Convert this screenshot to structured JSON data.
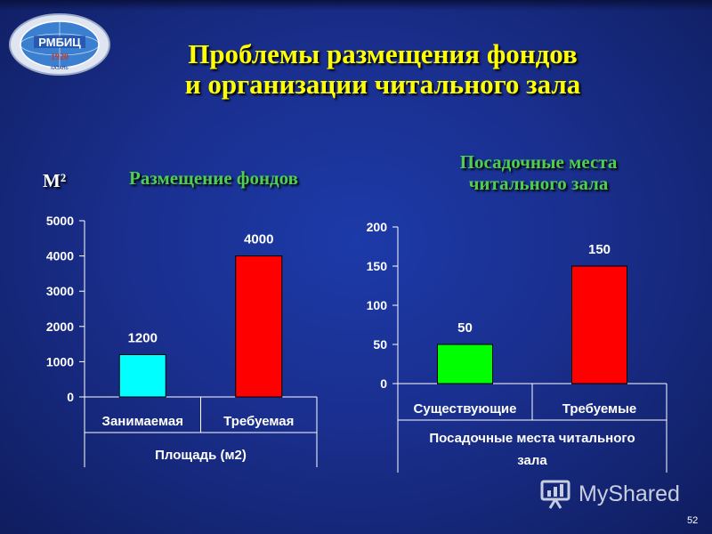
{
  "slide": {
    "title_lines": [
      "Проблемы размещения фондов",
      "и организации читального зала"
    ],
    "page_number": "52",
    "watermark": "MyShared",
    "logo_text": "РМБИЦ",
    "logo_year": "1920",
    "logo_city": "КАЗАНЬ"
  },
  "chart_data": [
    {
      "type": "bar",
      "title": "Размещение фондов",
      "unit_label": "М²",
      "categories": [
        "Занимаемая",
        "Требуемая"
      ],
      "values": [
        1200,
        4000
      ],
      "colors": [
        "#00ffff",
        "#ff0000"
      ],
      "xlabel": "Площадь (м2)",
      "ylim": [
        0,
        5000
      ],
      "yticks": [
        0,
        1000,
        2000,
        3000,
        4000,
        5000
      ],
      "grid": false,
      "data_labels": true
    },
    {
      "type": "bar",
      "title_lines": [
        "Посадочные места",
        "читального зала"
      ],
      "categories": [
        "Существующие",
        "Требуемые"
      ],
      "values": [
        50,
        150
      ],
      "colors": [
        "#00ff00",
        "#ff0000"
      ],
      "xlabel_lines": [
        "Посадочные места читального",
        "зала"
      ],
      "ylim": [
        0,
        200
      ],
      "yticks": [
        0,
        50,
        100,
        150,
        200
      ],
      "grid": false,
      "data_labels": true
    }
  ]
}
